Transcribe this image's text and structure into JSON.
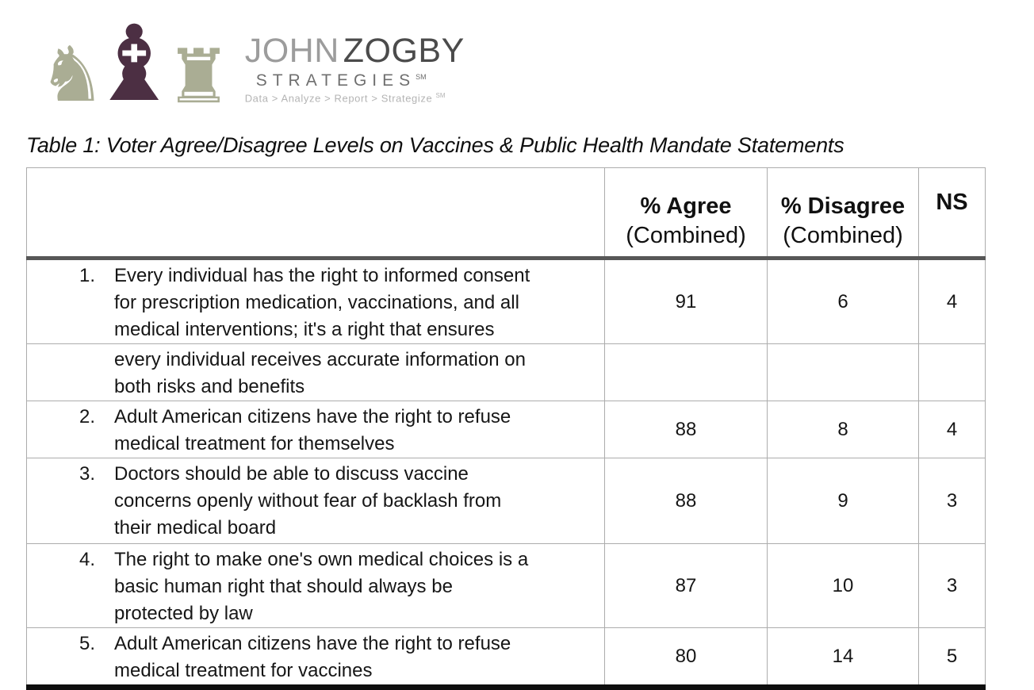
{
  "logo": {
    "knight_glyph": "♞",
    "bishop_glyph": "♝",
    "rook_glyph": "♜",
    "name_part1": "JOHN",
    "name_part2": "ZOGBY",
    "subtitle": "STRATEGIES",
    "subtitle_mark": "SM",
    "tagline": "Data > Analyze > Report > Strategize",
    "tagline_mark": "SM",
    "colors": {
      "piece_green": "#aaad94",
      "piece_plum": "#4c2f43",
      "name1_gray": "#9c9c9c",
      "name2_gray": "#4b4b4b"
    }
  },
  "title": "Table 1: Voter Agree/Disagree Levels on Vaccines & Public Health Mandate Statements",
  "table": {
    "headers": {
      "agree_line1": "% Agree",
      "agree_line2": "(Combined)",
      "disagree_line1": "% Disagree",
      "disagree_line2": "(Combined)",
      "ns": "NS"
    },
    "rows": [
      {
        "num": "1.",
        "statement": "Every individual has the right to informed consent\nfor prescription medication, vaccinations, and all\nmedical interventions; it's a right that ensures",
        "statement_continued": "every individual receives accurate information on\nboth risks and benefits",
        "agree": "91",
        "disagree": "6",
        "ns": "4"
      },
      {
        "num": "2.",
        "statement": "Adult American citizens have the right to refuse\nmedical treatment for themselves",
        "agree": "88",
        "disagree": "8",
        "ns": "4"
      },
      {
        "num": "3.",
        "statement": "Doctors should be able to discuss vaccine\nconcerns openly without fear of backlash from\ntheir medical board",
        "agree": "88",
        "disagree": "9",
        "ns": "3"
      },
      {
        "num": "4.",
        "statement": "The right to make one's own medical choices is a\nbasic human right that should always be\nprotected by law",
        "agree": "87",
        "disagree": "10",
        "ns": "3"
      },
      {
        "num": "5.",
        "statement": "Adult American citizens have the right to refuse\nmedical treatment for vaccines",
        "agree": "80",
        "disagree": "14",
        "ns": "5"
      }
    ],
    "clipped_next_row_visible": true
  }
}
